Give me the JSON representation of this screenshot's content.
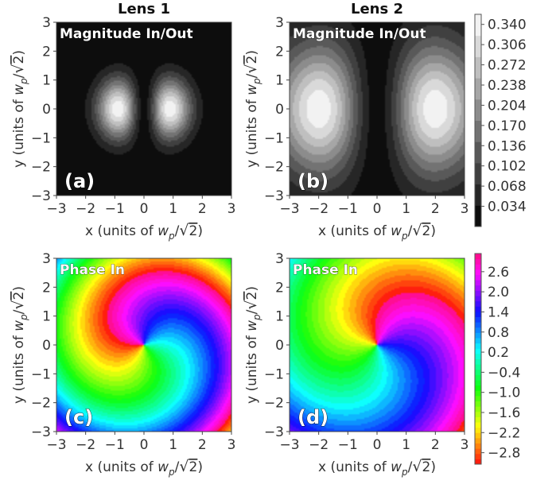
{
  "chart_data": [
    {
      "type": "heatmap",
      "column_title": "Lens 1",
      "inset_title": "Magnitude In/Out",
      "panel_label": "(a)",
      "field": "magnitude",
      "lens": 1,
      "xlabel": "x (units of w_p/√2)",
      "ylabel": "y (units of w_p/√2)",
      "xlim": [
        -3,
        3
      ],
      "ylim": [
        -3,
        3
      ],
      "xticks": [
        "−3",
        "−2",
        "−1",
        "0",
        "1",
        "2",
        "3"
      ],
      "yticks": [
        "−3",
        "−2",
        "−1",
        "0",
        "1",
        "2",
        "3"
      ],
      "colorscale": "grayscale",
      "lobe_centers": [
        [
          -0.9,
          0
        ],
        [
          0.9,
          0
        ]
      ],
      "peak_value": 0.35
    },
    {
      "type": "heatmap",
      "column_title": "Lens 2",
      "inset_title": "Magnitude In/Out",
      "panel_label": "(b)",
      "field": "magnitude",
      "lens": 2,
      "xlabel": "x (units of w_p/√2)",
      "ylabel": "y (units of w_p/√2)",
      "xlim": [
        -3,
        3
      ],
      "ylim": [
        -3,
        3
      ],
      "xticks": [
        "−3",
        "−2",
        "−1",
        "0",
        "1",
        "2",
        "3"
      ],
      "yticks": [
        "−3",
        "−2",
        "−1",
        "0",
        "1",
        "2",
        "3"
      ],
      "colorscale": "grayscale",
      "lobe_centers": [
        [
          -2.0,
          0
        ],
        [
          2.0,
          0
        ]
      ],
      "peak_value": 0.35
    },
    {
      "type": "heatmap",
      "inset_title": "Phase In",
      "panel_label": "(c)",
      "field": "phase",
      "lens": 1,
      "xlabel": "x (units of w_p/√2)",
      "ylabel": "y (units of w_p/√2)",
      "xlim": [
        -3,
        3
      ],
      "ylim": [
        -3,
        3
      ],
      "xticks": [
        "−3",
        "−2",
        "−1",
        "0",
        "1",
        "2",
        "3"
      ],
      "yticks": [
        "−3",
        "−2",
        "−1",
        "0",
        "1",
        "2",
        "3"
      ],
      "colorscale": "hue",
      "spiral_rate": 0.75,
      "phase_offset": 0
    },
    {
      "type": "heatmap",
      "inset_title": "Phase In",
      "panel_label": "(d)",
      "field": "phase",
      "lens": 2,
      "xlabel": "x (units of w_p/√2)",
      "ylabel": "y (units of w_p/√2)",
      "xlim": [
        -3,
        3
      ],
      "ylim": [
        -3,
        3
      ],
      "xticks": [
        "−3",
        "−2",
        "−1",
        "0",
        "1",
        "2",
        "3"
      ],
      "yticks": [
        "−3",
        "−2",
        "−1",
        "0",
        "1",
        "2",
        "3"
      ],
      "colorscale": "hue",
      "spiral_rate": 0.45,
      "phase_offset": 1.4
    }
  ],
  "colorbars": {
    "magnitude": {
      "ticks": [
        0.034,
        0.068,
        0.102,
        0.136,
        0.17,
        0.204,
        0.238,
        0.272,
        0.306,
        0.34
      ],
      "tick_labels": [
        "0.034",
        "0.068",
        "0.102",
        "0.136",
        "0.170",
        "0.204",
        "0.238",
        "0.272",
        "0.306",
        "0.340"
      ],
      "range": [
        0,
        0.357
      ]
    },
    "phase": {
      "ticks": [
        -2.8,
        -2.2,
        -1.6,
        -1.0,
        -0.4,
        0.2,
        0.8,
        1.4,
        2.0,
        2.6
      ],
      "tick_labels": [
        "−2.8",
        "−2.2",
        "−1.6",
        "−1.0",
        "−0.4",
        "0.2",
        "0.8",
        "1.4",
        "2.0",
        "2.6"
      ],
      "range": [
        -3.14159,
        3.14159
      ]
    }
  },
  "axis_text": {
    "xlabel_prefix": "x (units of ",
    "ylabel_prefix": "y (units of ",
    "w": "w",
    "p": "p",
    "slash": "/",
    "two": "2",
    "close": ")"
  }
}
